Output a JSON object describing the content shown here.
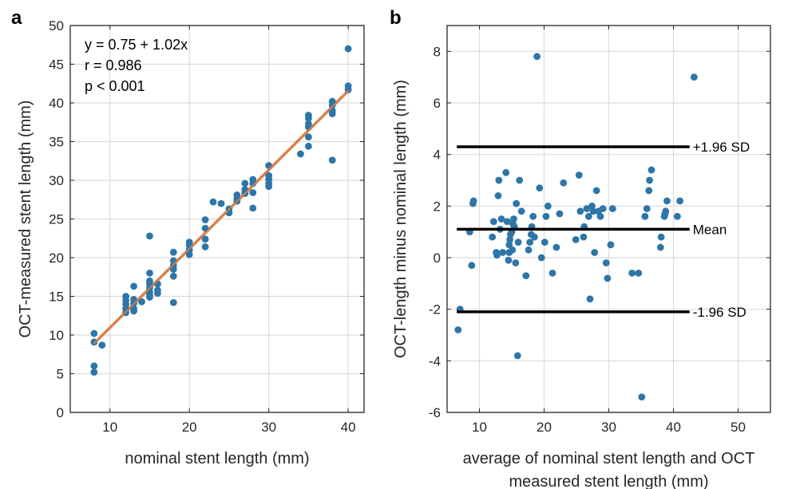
{
  "chart_data": [
    {
      "type": "scatter",
      "panel": "a",
      "xlabel": "nominal stent length (mm)",
      "ylabel": "OCT-measured stent length (mm)",
      "xlim": [
        5,
        42
      ],
      "ylim": [
        0,
        50
      ],
      "xticks": [
        10,
        20,
        30,
        40
      ],
      "yticks": [
        0,
        5,
        10,
        15,
        20,
        25,
        30,
        35,
        40,
        45,
        50
      ],
      "grid": true,
      "annotations": [
        "y = 0.75 + 1.02x",
        "r = 0.986",
        "p < 0.001"
      ],
      "colors": {
        "points": "#2e75a8",
        "fit": "#d9824a"
      },
      "fit_line": {
        "intercept": 0.75,
        "slope": 1.02,
        "x_range": [
          8,
          40
        ]
      },
      "points": [
        [
          8,
          10.2
        ],
        [
          8,
          9.1
        ],
        [
          8,
          6.0
        ],
        [
          8,
          5.2
        ],
        [
          9,
          8.7
        ],
        [
          12,
          15.0
        ],
        [
          12,
          14.5
        ],
        [
          12,
          14.0
        ],
        [
          12,
          13.4
        ],
        [
          12,
          12.9
        ],
        [
          13,
          16.3
        ],
        [
          13,
          14.6
        ],
        [
          13,
          14.1
        ],
        [
          13,
          13.4
        ],
        [
          13,
          13.1
        ],
        [
          14,
          14.3
        ],
        [
          15,
          22.8
        ],
        [
          15,
          18.0
        ],
        [
          15,
          17.0
        ],
        [
          15,
          16.6
        ],
        [
          15,
          16.1
        ],
        [
          15,
          15.6
        ],
        [
          15,
          15.2
        ],
        [
          15,
          14.9
        ],
        [
          16,
          16.6
        ],
        [
          16,
          15.8
        ],
        [
          16,
          15.4
        ],
        [
          18,
          20.7
        ],
        [
          18,
          19.6
        ],
        [
          18,
          19.0
        ],
        [
          18,
          18.5
        ],
        [
          18,
          17.6
        ],
        [
          18,
          14.2
        ],
        [
          20,
          22.0
        ],
        [
          20,
          21.6
        ],
        [
          20,
          21.0
        ],
        [
          20,
          20.4
        ],
        [
          22,
          24.9
        ],
        [
          22,
          23.8
        ],
        [
          22,
          22.4
        ],
        [
          22,
          21.4
        ],
        [
          23,
          27.2
        ],
        [
          24,
          27.0
        ],
        [
          25,
          25.8
        ],
        [
          25,
          26.3
        ],
        [
          26,
          27.6
        ],
        [
          26,
          28.1
        ],
        [
          26,
          27.3
        ],
        [
          27,
          29.6
        ],
        [
          27,
          28.8
        ],
        [
          27,
          28.3
        ],
        [
          28,
          30.1
        ],
        [
          28,
          29.6
        ],
        [
          28,
          28.4
        ],
        [
          28,
          26.4
        ],
        [
          30,
          31.9
        ],
        [
          30,
          30.6
        ],
        [
          30,
          30.1
        ],
        [
          30,
          29.6
        ],
        [
          30,
          29.2
        ],
        [
          34,
          33.4
        ],
        [
          35,
          38.4
        ],
        [
          35,
          38.0
        ],
        [
          35,
          37.3
        ],
        [
          35,
          36.9
        ],
        [
          35,
          35.6
        ],
        [
          35,
          34.4
        ],
        [
          38,
          40.2
        ],
        [
          38,
          39.7
        ],
        [
          38,
          39.0
        ],
        [
          38,
          38.6
        ],
        [
          38,
          32.6
        ],
        [
          40,
          47.0
        ],
        [
          40,
          42.2
        ],
        [
          40,
          41.7
        ]
      ]
    },
    {
      "type": "scatter",
      "panel": "b",
      "xlabel": "average of nominal stent length and OCT",
      "xlabel2": "measured stent length (mm)",
      "ylabel": "OCT-length minus nominal length (mm)",
      "xlim": [
        5,
        55
      ],
      "ylim": [
        -6,
        9
      ],
      "xticks": [
        10,
        20,
        30,
        40,
        50
      ],
      "yticks": [
        -6,
        -4,
        -2,
        0,
        2,
        4,
        6,
        8
      ],
      "grid": true,
      "colors": {
        "points": "#2e75a8",
        "lines": "#000000"
      },
      "reference_lines": [
        {
          "y": 4.3,
          "label": "+1.96 SD"
        },
        {
          "y": 1.1,
          "label": "Mean"
        },
        {
          "y": -2.1,
          "label": "-1.96 SD"
        }
      ],
      "reference_x_range": [
        6.5,
        42.5
      ],
      "points": [
        [
          6.7,
          -2.8
        ],
        [
          7.0,
          -2.0
        ],
        [
          8.5,
          1.0
        ],
        [
          8.8,
          -0.3
        ],
        [
          9.0,
          2.1
        ],
        [
          9.1,
          2.2
        ],
        [
          12.0,
          0.8
        ],
        [
          12.2,
          1.4
        ],
        [
          12.6,
          0.2
        ],
        [
          12.7,
          0.1
        ],
        [
          12.9,
          2.4
        ],
        [
          13.0,
          3.0
        ],
        [
          13.2,
          1.1
        ],
        [
          13.4,
          1.5
        ],
        [
          13.6,
          0.2
        ],
        [
          14.1,
          3.3
        ],
        [
          14.3,
          1.4
        ],
        [
          14.5,
          -0.1
        ],
        [
          14.6,
          0.2
        ],
        [
          14.6,
          0.5
        ],
        [
          14.7,
          0.7
        ],
        [
          14.8,
          0.9
        ],
        [
          15.0,
          1.0
        ],
        [
          15.1,
          0.3
        ],
        [
          15.2,
          1.3
        ],
        [
          15.3,
          1.5
        ],
        [
          15.4,
          1.2
        ],
        [
          15.6,
          -0.2
        ],
        [
          15.7,
          2.1
        ],
        [
          15.9,
          -3.8
        ],
        [
          16.0,
          0.6
        ],
        [
          16.2,
          3.0
        ],
        [
          16.5,
          1.8
        ],
        [
          17.2,
          -0.7
        ],
        [
          17.6,
          0.3
        ],
        [
          17.8,
          0.6
        ],
        [
          18.0,
          0.9
        ],
        [
          18.1,
          1.2
        ],
        [
          18.3,
          1.6
        ],
        [
          18.5,
          0.8
        ],
        [
          18.9,
          7.8
        ],
        [
          19.3,
          2.7
        ],
        [
          19.6,
          0.0
        ],
        [
          20.1,
          0.6
        ],
        [
          20.3,
          1.6
        ],
        [
          20.6,
          2.0
        ],
        [
          21.3,
          -0.6
        ],
        [
          21.9,
          0.4
        ],
        [
          22.4,
          1.7
        ],
        [
          23.0,
          2.9
        ],
        [
          24.9,
          0.7
        ],
        [
          25.4,
          3.2
        ],
        [
          25.6,
          1.8
        ],
        [
          26.1,
          0.8
        ],
        [
          26.2,
          1.2
        ],
        [
          26.6,
          1.9
        ],
        [
          26.9,
          1.6
        ],
        [
          27.1,
          -1.6
        ],
        [
          27.4,
          2.0
        ],
        [
          27.6,
          1.8
        ],
        [
          27.8,
          0.2
        ],
        [
          28.1,
          2.6
        ],
        [
          28.4,
          1.8
        ],
        [
          28.7,
          1.6
        ],
        [
          29.1,
          1.9
        ],
        [
          29.6,
          -0.2
        ],
        [
          29.8,
          -0.8
        ],
        [
          30.3,
          0.5
        ],
        [
          30.6,
          1.9
        ],
        [
          33.6,
          -0.6
        ],
        [
          34.6,
          -0.6
        ],
        [
          35.1,
          -5.4
        ],
        [
          35.6,
          1.6
        ],
        [
          35.9,
          1.9
        ],
        [
          36.2,
          2.6
        ],
        [
          36.3,
          3.0
        ],
        [
          36.6,
          3.4
        ],
        [
          38.0,
          0.4
        ],
        [
          38.1,
          0.8
        ],
        [
          38.6,
          1.6
        ],
        [
          38.7,
          1.7
        ],
        [
          38.8,
          1.8
        ],
        [
          39.0,
          2.2
        ],
        [
          40.6,
          1.6
        ],
        [
          41.0,
          2.2
        ],
        [
          43.2,
          7.0
        ]
      ]
    }
  ]
}
